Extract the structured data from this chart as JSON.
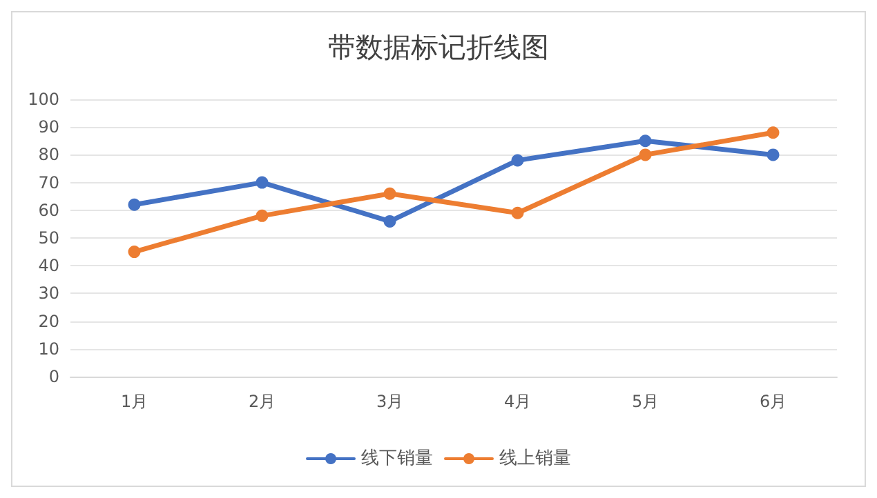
{
  "chart_data": {
    "type": "line",
    "title": "带数据标记折线图",
    "categories": [
      "1月",
      "2月",
      "3月",
      "4月",
      "5月",
      "6月"
    ],
    "series": [
      {
        "name": "线下销量",
        "color": "#4472c4",
        "values": [
          62,
          70,
          56,
          78,
          85,
          80
        ]
      },
      {
        "name": "线上销量",
        "color": "#ed7d31",
        "values": [
          45,
          58,
          66,
          59,
          80,
          88
        ]
      }
    ],
    "ylim": [
      0,
      100
    ],
    "yticks": [
      0,
      10,
      20,
      30,
      40,
      50,
      60,
      70,
      80,
      90,
      100
    ],
    "grid": "y",
    "legend": "bottom",
    "marker": "circle",
    "line_style": "solid"
  }
}
